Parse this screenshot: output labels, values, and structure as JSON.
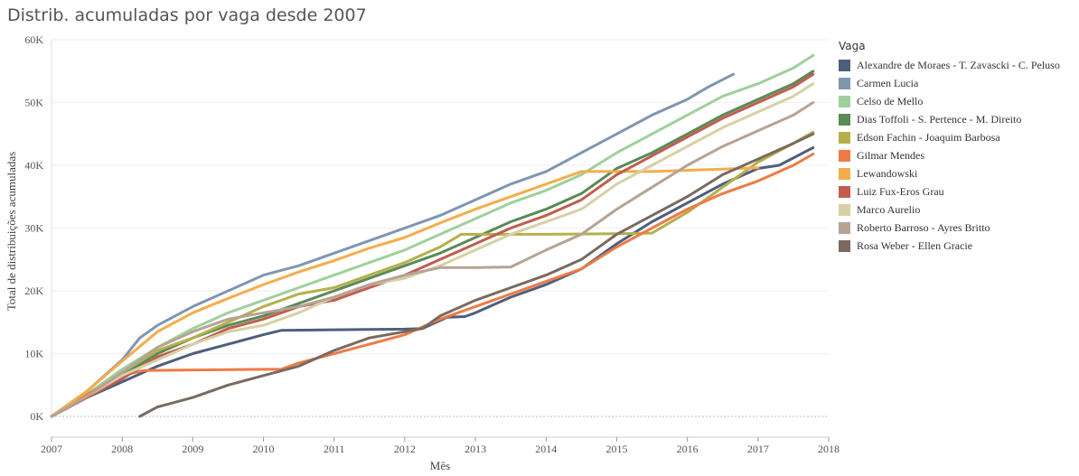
{
  "title": "Distrib. acumuladas por vaga desde 2007",
  "chart_data": {
    "type": "line",
    "title": "Distrib. acumuladas por vaga desde 2007",
    "xlabel": "Mês",
    "ylabel": "Total de distribuições acumuladas",
    "xlim": [
      2007,
      2018
    ],
    "ylim": [
      0,
      60000
    ],
    "x_ticks": [
      "2007",
      "2008",
      "2009",
      "2010",
      "2011",
      "2012",
      "2013",
      "2014",
      "2015",
      "2016",
      "2017",
      "2018"
    ],
    "y_ticks": [
      {
        "v": 0,
        "label": "0K"
      },
      {
        "v": 10000,
        "label": "10K"
      },
      {
        "v": 20000,
        "label": "20K"
      },
      {
        "v": 30000,
        "label": "30K"
      },
      {
        "v": 40000,
        "label": "40K"
      },
      {
        "v": 50000,
        "label": "50K"
      },
      {
        "v": 60000,
        "label": "60K"
      }
    ],
    "legend_title": "Vaga",
    "legend_position": "right",
    "series": [
      {
        "name": "Alexandre de Moraes - T. Zavascki - C. Peluso",
        "color": "#4e5f7c",
        "points": [
          [
            2007.0,
            0
          ],
          [
            2007.5,
            3000
          ],
          [
            2008.0,
            5500
          ],
          [
            2008.5,
            8000
          ],
          [
            2009.0,
            10000
          ],
          [
            2009.5,
            11500
          ],
          [
            2010.0,
            13000
          ],
          [
            2010.25,
            13700
          ],
          [
            2011.0,
            13800
          ],
          [
            2012.0,
            13900
          ],
          [
            2012.25,
            14000
          ],
          [
            2012.6,
            15800
          ],
          [
            2012.85,
            15900
          ],
          [
            2013.0,
            16500
          ],
          [
            2013.5,
            19000
          ],
          [
            2014.0,
            21000
          ],
          [
            2014.5,
            23500
          ],
          [
            2015.0,
            27500
          ],
          [
            2015.5,
            31000
          ],
          [
            2016.0,
            34000
          ],
          [
            2016.5,
            37000
          ],
          [
            2017.0,
            39500
          ],
          [
            2017.3,
            40000
          ],
          [
            2017.78,
            42800
          ]
        ]
      },
      {
        "name": "Carmen Lucia",
        "color": "#8096af",
        "points": [
          [
            2007.0,
            0
          ],
          [
            2007.5,
            4000
          ],
          [
            2008.0,
            9000
          ],
          [
            2008.25,
            12500
          ],
          [
            2008.5,
            14500
          ],
          [
            2009.0,
            17500
          ],
          [
            2009.5,
            20000
          ],
          [
            2010.0,
            22500
          ],
          [
            2010.5,
            24000
          ],
          [
            2011.0,
            26000
          ],
          [
            2011.5,
            28000
          ],
          [
            2012.0,
            30000
          ],
          [
            2012.5,
            32000
          ],
          [
            2013.0,
            34500
          ],
          [
            2013.5,
            37000
          ],
          [
            2014.0,
            39000
          ],
          [
            2014.5,
            42000
          ],
          [
            2015.0,
            45000
          ],
          [
            2015.5,
            48000
          ],
          [
            2016.0,
            50500
          ],
          [
            2016.3,
            52500
          ],
          [
            2016.65,
            54500
          ]
        ]
      },
      {
        "name": "Celso de Mello",
        "color": "#9ed09c",
        "points": [
          [
            2007.0,
            0
          ],
          [
            2007.5,
            3500
          ],
          [
            2008.0,
            7500
          ],
          [
            2008.5,
            11000
          ],
          [
            2009.0,
            14000
          ],
          [
            2009.5,
            16500
          ],
          [
            2010.0,
            18500
          ],
          [
            2010.5,
            20500
          ],
          [
            2011.0,
            22500
          ],
          [
            2011.5,
            24500
          ],
          [
            2012.0,
            26500
          ],
          [
            2012.5,
            29000
          ],
          [
            2013.0,
            31500
          ],
          [
            2013.5,
            34000
          ],
          [
            2014.0,
            36000
          ],
          [
            2014.5,
            38500
          ],
          [
            2015.0,
            42000
          ],
          [
            2015.5,
            45000
          ],
          [
            2016.0,
            48000
          ],
          [
            2016.5,
            51000
          ],
          [
            2017.0,
            53000
          ],
          [
            2017.5,
            55500
          ],
          [
            2017.78,
            57500
          ]
        ]
      },
      {
        "name": "Dias Toffoli - S. Pertence - M. Direito",
        "color": "#5a8a56",
        "points": [
          [
            2007.0,
            0
          ],
          [
            2007.5,
            3200
          ],
          [
            2008.0,
            6500
          ],
          [
            2008.5,
            10000
          ],
          [
            2009.0,
            12500
          ],
          [
            2009.5,
            14500
          ],
          [
            2010.0,
            16000
          ],
          [
            2010.5,
            18000
          ],
          [
            2011.0,
            20000
          ],
          [
            2011.5,
            22000
          ],
          [
            2012.0,
            24000
          ],
          [
            2012.5,
            26000
          ],
          [
            2013.0,
            28500
          ],
          [
            2013.5,
            31000
          ],
          [
            2014.0,
            33000
          ],
          [
            2014.5,
            35500
          ],
          [
            2015.0,
            39500
          ],
          [
            2015.5,
            42000
          ],
          [
            2016.0,
            45000
          ],
          [
            2016.5,
            48000
          ],
          [
            2017.0,
            50500
          ],
          [
            2017.5,
            53000
          ],
          [
            2017.78,
            55000
          ]
        ]
      },
      {
        "name": "Edson Fachin - Joaquim Barbosa",
        "color": "#b4b04c",
        "points": [
          [
            2007.0,
            0
          ],
          [
            2007.5,
            3300
          ],
          [
            2008.0,
            7000
          ],
          [
            2008.5,
            10500
          ],
          [
            2009.0,
            12500
          ],
          [
            2009.5,
            15000
          ],
          [
            2010.0,
            17500
          ],
          [
            2010.5,
            19500
          ],
          [
            2011.0,
            20500
          ],
          [
            2011.5,
            22500
          ],
          [
            2012.0,
            24500
          ],
          [
            2012.5,
            27000
          ],
          [
            2012.8,
            29000
          ],
          [
            2013.0,
            29000
          ],
          [
            2014.0,
            29000
          ],
          [
            2015.0,
            29100
          ],
          [
            2015.5,
            29200
          ],
          [
            2016.0,
            32500
          ],
          [
            2016.5,
            36500
          ],
          [
            2017.0,
            40500
          ],
          [
            2017.5,
            43500
          ],
          [
            2017.78,
            45300
          ]
        ]
      },
      {
        "name": "Gilmar Mendes",
        "color": "#ed7b45",
        "points": [
          [
            2007.0,
            0
          ],
          [
            2007.5,
            3500
          ],
          [
            2008.0,
            6500
          ],
          [
            2008.3,
            7300
          ],
          [
            2009.0,
            7400
          ],
          [
            2010.0,
            7500
          ],
          [
            2010.25,
            7500
          ],
          [
            2010.5,
            8500
          ],
          [
            2011.0,
            10000
          ],
          [
            2011.5,
            11500
          ],
          [
            2012.0,
            13000
          ],
          [
            2012.5,
            15500
          ],
          [
            2013.0,
            17500
          ],
          [
            2013.5,
            19500
          ],
          [
            2014.0,
            21500
          ],
          [
            2014.5,
            23500
          ],
          [
            2015.0,
            27000
          ],
          [
            2015.5,
            30000
          ],
          [
            2016.0,
            33000
          ],
          [
            2016.5,
            35500
          ],
          [
            2017.0,
            37500
          ],
          [
            2017.5,
            40000
          ],
          [
            2017.78,
            41800
          ]
        ]
      },
      {
        "name": "Lewandowski",
        "color": "#f5ac4b",
        "points": [
          [
            2007.0,
            0
          ],
          [
            2007.5,
            4000
          ],
          [
            2008.0,
            8800
          ],
          [
            2008.5,
            13500
          ],
          [
            2009.0,
            16500
          ],
          [
            2009.5,
            18800
          ],
          [
            2010.0,
            21000
          ],
          [
            2010.5,
            23000
          ],
          [
            2011.0,
            24800
          ],
          [
            2011.5,
            26800
          ],
          [
            2012.0,
            28500
          ],
          [
            2012.5,
            30800
          ],
          [
            2013.0,
            33000
          ],
          [
            2013.5,
            35000
          ],
          [
            2014.0,
            37000
          ],
          [
            2014.5,
            39000
          ],
          [
            2015.0,
            39000
          ],
          [
            2015.5,
            39000
          ],
          [
            2016.0,
            39200
          ],
          [
            2016.5,
            39400
          ],
          [
            2017.0,
            39600
          ]
        ]
      },
      {
        "name": "Luiz Fux-Eros Grau",
        "color": "#c25c4e",
        "points": [
          [
            2007.0,
            0
          ],
          [
            2007.5,
            3000
          ],
          [
            2008.0,
            6000
          ],
          [
            2008.5,
            9500
          ],
          [
            2009.0,
            11500
          ],
          [
            2009.5,
            14000
          ],
          [
            2010.0,
            15500
          ],
          [
            2010.5,
            17500
          ],
          [
            2011.0,
            18500
          ],
          [
            2011.5,
            20500
          ],
          [
            2012.0,
            22500
          ],
          [
            2012.5,
            25000
          ],
          [
            2013.0,
            27500
          ],
          [
            2013.5,
            30000
          ],
          [
            2014.0,
            32000
          ],
          [
            2014.5,
            34500
          ],
          [
            2015.0,
            38500
          ],
          [
            2015.5,
            41500
          ],
          [
            2016.0,
            44500
          ],
          [
            2016.5,
            47500
          ],
          [
            2017.0,
            50000
          ],
          [
            2017.5,
            52500
          ],
          [
            2017.78,
            54500
          ]
        ]
      },
      {
        "name": "Marco Aurelio",
        "color": "#d6d0a4",
        "points": [
          [
            2007.0,
            0
          ],
          [
            2007.5,
            3200
          ],
          [
            2008.0,
            6500
          ],
          [
            2008.5,
            9000
          ],
          [
            2009.0,
            11500
          ],
          [
            2009.5,
            13500
          ],
          [
            2010.0,
            14500
          ],
          [
            2010.5,
            16500
          ],
          [
            2011.0,
            19000
          ],
          [
            2011.5,
            21000
          ],
          [
            2012.0,
            22000
          ],
          [
            2012.5,
            24000
          ],
          [
            2013.0,
            26500
          ],
          [
            2013.5,
            29000
          ],
          [
            2014.0,
            31000
          ],
          [
            2014.5,
            33000
          ],
          [
            2015.0,
            37000
          ],
          [
            2015.5,
            40000
          ],
          [
            2016.0,
            43000
          ],
          [
            2016.5,
            46000
          ],
          [
            2017.0,
            48500
          ],
          [
            2017.5,
            51000
          ],
          [
            2017.78,
            53000
          ]
        ]
      },
      {
        "name": "Roberto Barroso - Ayres Britto",
        "color": "#b6a393",
        "points": [
          [
            2007.0,
            0
          ],
          [
            2007.5,
            3200
          ],
          [
            2008.0,
            7000
          ],
          [
            2008.5,
            11000
          ],
          [
            2009.0,
            13500
          ],
          [
            2009.5,
            15500
          ],
          [
            2010.0,
            16500
          ],
          [
            2010.5,
            17500
          ],
          [
            2011.0,
            19000
          ],
          [
            2011.5,
            21000
          ],
          [
            2012.0,
            22500
          ],
          [
            2012.5,
            23700
          ],
          [
            2013.0,
            23700
          ],
          [
            2013.5,
            23800
          ],
          [
            2014.0,
            26500
          ],
          [
            2014.5,
            29000
          ],
          [
            2015.0,
            33000
          ],
          [
            2015.5,
            36500
          ],
          [
            2016.0,
            40000
          ],
          [
            2016.5,
            43000
          ],
          [
            2017.0,
            45500
          ],
          [
            2017.5,
            48000
          ],
          [
            2017.78,
            50000
          ]
        ]
      },
      {
        "name": "Rosa Weber - Ellen Gracie",
        "color": "#7a6a5f",
        "points": [
          [
            2008.25,
            0
          ],
          [
            2008.5,
            1500
          ],
          [
            2009.0,
            3000
          ],
          [
            2009.5,
            5000
          ],
          [
            2010.0,
            6500
          ],
          [
            2010.5,
            8000
          ],
          [
            2011.0,
            10500
          ],
          [
            2011.5,
            12500
          ],
          [
            2012.0,
            13500
          ],
          [
            2012.25,
            14000
          ],
          [
            2012.5,
            16000
          ],
          [
            2013.0,
            18500
          ],
          [
            2013.5,
            20500
          ],
          [
            2014.0,
            22500
          ],
          [
            2014.5,
            25000
          ],
          [
            2015.0,
            29000
          ],
          [
            2015.5,
            32000
          ],
          [
            2016.0,
            35000
          ],
          [
            2016.5,
            38500
          ],
          [
            2017.0,
            41000
          ],
          [
            2017.5,
            43500
          ],
          [
            2017.78,
            45000
          ]
        ]
      }
    ]
  }
}
